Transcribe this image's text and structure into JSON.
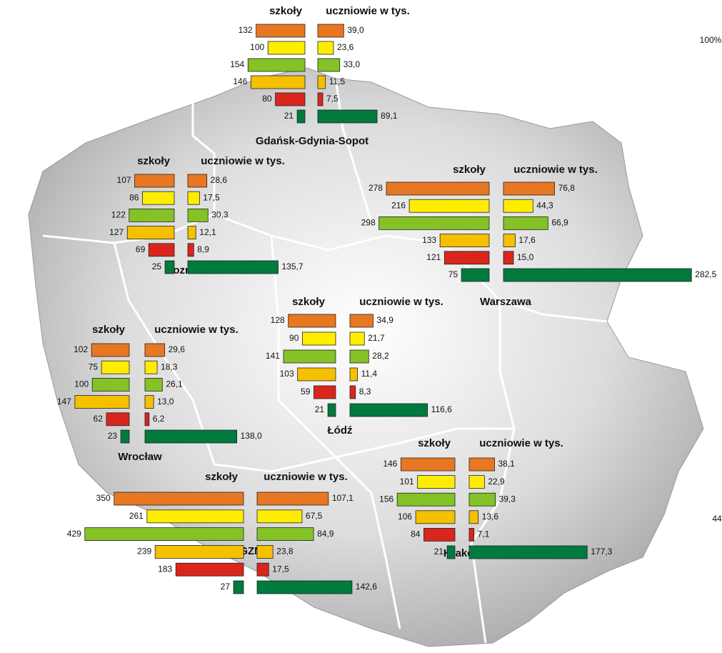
{
  "colors": [
    "#e87722",
    "#ffed00",
    "#84c225",
    "#f5c000",
    "#d9261c",
    "#007a3d"
  ],
  "cities": [
    {
      "name": "Gdańsk-Gdynia-Sopot",
      "schools_header": "szkoły",
      "students_header": "uczniowie w tys.",
      "schools": [
        132,
        100,
        154,
        146,
        80,
        21
      ],
      "students": [
        39.0,
        23.6,
        33.0,
        11.5,
        7.5,
        89.1
      ],
      "students_labels": [
        "39,0",
        "23,6",
        "33,0",
        "11,5",
        "7,5",
        "89,1"
      ]
    },
    {
      "name": "Poznań",
      "schools_header": "szkoły",
      "students_header": "uczniowie w tys.",
      "schools": [
        107,
        86,
        122,
        127,
        69,
        25
      ],
      "students": [
        28.6,
        17.5,
        30.3,
        12.1,
        8.9,
        135.7
      ],
      "students_labels": [
        "28,6",
        "17,5",
        "30,3",
        "12,1",
        "8,9",
        "135,7"
      ]
    },
    {
      "name": "Warszawa",
      "schools_header": "szkoły",
      "students_header": "uczniowie w tys.",
      "schools": [
        278,
        216,
        298,
        133,
        121,
        75
      ],
      "students": [
        76.8,
        44.3,
        66.9,
        17.6,
        15.0,
        282.5
      ],
      "students_labels": [
        "76,8",
        "44,3",
        "66,9",
        "17,6",
        "15,0",
        "282,5"
      ]
    },
    {
      "name": "Łódź",
      "schools_header": "szkoły",
      "students_header": "uczniowie w tys.",
      "schools": [
        128,
        90,
        141,
        103,
        59,
        21
      ],
      "students": [
        34.9,
        21.7,
        28.2,
        11.4,
        8.3,
        116.6
      ],
      "students_labels": [
        "34,9",
        "21,7",
        "28,2",
        "11,4",
        "8,3",
        "116,6"
      ]
    },
    {
      "name": "Wrocław",
      "schools_header": "szkoły",
      "students_header": "uczniowie w tys.",
      "schools": [
        102,
        75,
        100,
        147,
        62,
        23
      ],
      "students": [
        29.6,
        18.3,
        26.1,
        13.0,
        6.2,
        138.0
      ],
      "students_labels": [
        "29,6",
        "18,3",
        "26,1",
        "13,0",
        "6,2",
        "138,0"
      ]
    },
    {
      "name": "GZM",
      "schools_header": "szkoły",
      "students_header": "uczniowie w tys.",
      "schools": [
        350,
        261,
        429,
        239,
        183,
        27
      ],
      "students": [
        107.1,
        67.5,
        84.9,
        23.8,
        17.5,
        142.6
      ],
      "students_labels": [
        "107,1",
        "67,5",
        "84,9",
        "23,8",
        "17,5",
        "142,6"
      ]
    },
    {
      "name": "Kraków",
      "schools_header": "szkoły",
      "students_header": "uczniowie w tys.",
      "schools": [
        146,
        101,
        156,
        106,
        84,
        21
      ],
      "students": [
        38.1,
        22.9,
        39.3,
        13.6,
        7.1,
        177.3
      ],
      "students_labels": [
        "38,1",
        "22,9",
        "39,3",
        "13,6",
        "7,1",
        "177,3"
      ]
    }
  ],
  "corner_labels": [
    "100%",
    "44"
  ]
}
